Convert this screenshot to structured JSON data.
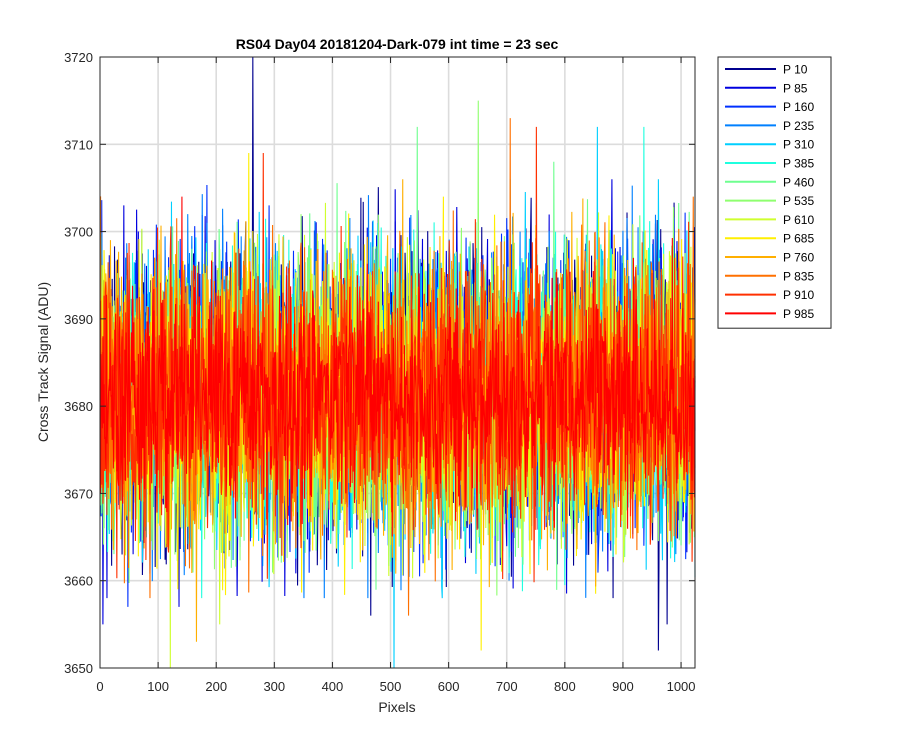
{
  "chart_data": {
    "type": "line",
    "title": "RS04 Day04 20181204-Dark-079 int time = 23 sec",
    "xlabel": "Pixels",
    "ylabel": "Cross Track Signal (ADU)",
    "xlim": [
      0,
      1024
    ],
    "ylim": [
      3650,
      3720
    ],
    "xticks": [
      0,
      100,
      200,
      300,
      400,
      500,
      600,
      700,
      800,
      900,
      1000
    ],
    "yticks": [
      3650,
      3660,
      3670,
      3680,
      3690,
      3700,
      3710,
      3720
    ],
    "grid": true,
    "legend_position": "outside-top-right",
    "n_points_per_series": 1024,
    "series": [
      {
        "name": "P 10",
        "color": "#00008f",
        "mean": 3681,
        "noise_sd": 8.5,
        "spikes": [
          [
            262,
            3720
          ],
          [
            465,
            3656
          ],
          [
            960,
            3652
          ],
          [
            975,
            3655
          ],
          [
            980,
            3685
          ]
        ]
      },
      {
        "name": "P 85",
        "color": "#0000df",
        "mean": 3681,
        "noise_sd": 8.3,
        "spikes": [
          [
            4,
            3655
          ],
          [
            40,
            3703
          ],
          [
            135,
            3657
          ]
        ]
      },
      {
        "name": "P 160",
        "color": "#0030ff",
        "mean": 3681,
        "noise_sd": 8.2,
        "spikes": [
          [
            47,
            3657
          ],
          [
            290,
            3703
          ],
          [
            555,
            3662
          ]
        ]
      },
      {
        "name": "P 235",
        "color": "#0080ff",
        "mean": 3681,
        "noise_sd": 8.2,
        "spikes": [
          [
            150,
            3702
          ],
          [
            350,
            3658
          ]
        ]
      },
      {
        "name": "P 310",
        "color": "#00cfff",
        "mean": 3681,
        "noise_sd": 8.2,
        "spikes": [
          [
            505,
            3650
          ],
          [
            855,
            3712
          ],
          [
            960,
            3706
          ]
        ]
      },
      {
        "name": "P 385",
        "color": "#1fffdf",
        "mean": 3681,
        "noise_sd": 8.0,
        "spikes": [
          [
            935,
            3712
          ],
          [
            705,
            3706
          ]
        ]
      },
      {
        "name": "P 460",
        "color": "#6fff8f",
        "mean": 3681,
        "noise_sd": 8.0,
        "spikes": [
          [
            545,
            3712
          ],
          [
            780,
            3708
          ]
        ]
      },
      {
        "name": "P 535",
        "color": "#8fff6f",
        "mean": 3681,
        "noise_sd": 8.0,
        "spikes": [
          [
            650,
            3715
          ],
          [
            345,
            3702
          ]
        ]
      },
      {
        "name": "P 610",
        "color": "#cfff2f",
        "mean": 3681,
        "noise_sd": 8.0,
        "spikes": [
          [
            120,
            3650
          ],
          [
            205,
            3655
          ]
        ]
      },
      {
        "name": "P 685",
        "color": "#ffef00",
        "mean": 3681,
        "noise_sd": 8.0,
        "spikes": [
          [
            655,
            3652
          ],
          [
            255,
            3709
          ],
          [
            590,
            3704
          ]
        ]
      },
      {
        "name": "P 760",
        "color": "#ffaf00",
        "mean": 3681,
        "noise_sd": 7.8,
        "spikes": [
          [
            165,
            3653
          ],
          [
            520,
            3706
          ]
        ]
      },
      {
        "name": "P 835",
        "color": "#ff7000",
        "mean": 3681,
        "noise_sd": 7.8,
        "spikes": [
          [
            705,
            3713
          ],
          [
            1020,
            3704
          ],
          [
            530,
            3656
          ]
        ]
      },
      {
        "name": "P 910",
        "color": "#ff3000",
        "mean": 3681,
        "noise_sd": 7.6,
        "spikes": [
          [
            280,
            3709
          ],
          [
            750,
            3712
          ]
        ]
      },
      {
        "name": "P 985",
        "color": "#ff0000",
        "mean": 3681,
        "noise_sd": 6.2,
        "spikes": [
          [
            140,
            3704
          ],
          [
            320,
            3695
          ]
        ]
      }
    ]
  }
}
